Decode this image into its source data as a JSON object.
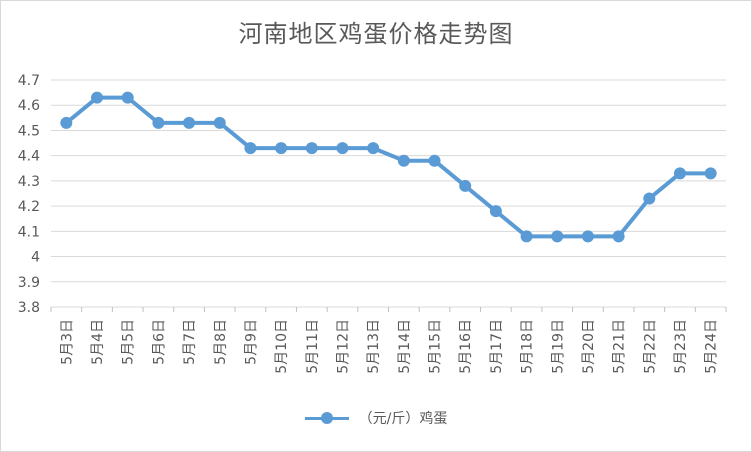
{
  "chart_data": {
    "type": "line",
    "title": "河南地区鸡蛋价格走势图",
    "categories": [
      "5月3日",
      "5月4日",
      "5月5日",
      "5月6日",
      "5月7日",
      "5月8日",
      "5月9日",
      "5月10日",
      "5月11日",
      "5月12日",
      "5月13日",
      "5月14日",
      "5月15日",
      "5月16日",
      "5月17日",
      "5月18日",
      "5月19日",
      "5月20日",
      "5月21日",
      "5月22日",
      "5月23日",
      "5月24日"
    ],
    "series": [
      {
        "name": "（元/斤）鸡蛋",
        "color": "#5b9bd5",
        "values": [
          4.53,
          4.63,
          4.63,
          4.53,
          4.53,
          4.53,
          4.43,
          4.43,
          4.43,
          4.43,
          4.43,
          4.38,
          4.38,
          4.28,
          4.18,
          4.08,
          4.08,
          4.08,
          4.08,
          4.23,
          4.33,
          4.33
        ]
      }
    ],
    "y_ticks": [
      "3.8",
      "3.9",
      "4",
      "4.1",
      "4.2",
      "4.3",
      "4.4",
      "4.5",
      "4.6",
      "4.7"
    ],
    "ylim": [
      3.8,
      4.7
    ],
    "grid": true,
    "legend_position": "bottom"
  }
}
